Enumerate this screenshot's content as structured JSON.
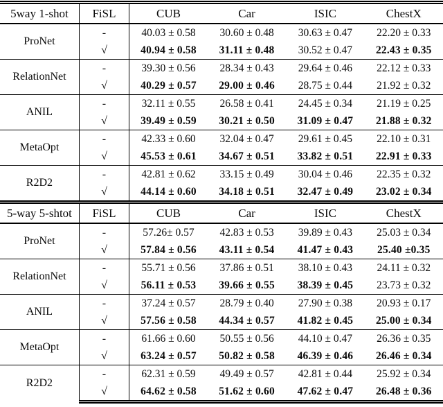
{
  "table": {
    "sections": [
      {
        "title": "5way 1-shot",
        "fisl_label": "FiSL",
        "columns": [
          "CUB",
          "Car",
          "ISIC",
          "ChestX"
        ],
        "groups": [
          {
            "method": "ProNet",
            "rows": [
              {
                "fisl": "-",
                "cells": [
                  {
                    "t": "40.03 ± 0.58",
                    "b": false
                  },
                  {
                    "t": "30.60 ± 0.48",
                    "b": false
                  },
                  {
                    "t": "30.63 ± 0.47",
                    "b": false
                  },
                  {
                    "t": "22.20 ± 0.33",
                    "b": false
                  }
                ]
              },
              {
                "fisl": "√",
                "cells": [
                  {
                    "t": "40.94 ± 0.58",
                    "b": true
                  },
                  {
                    "t": "31.11 ± 0.48",
                    "b": true
                  },
                  {
                    "t": "30.52 ± 0.47",
                    "b": false
                  },
                  {
                    "t": "22.43 ± 0.35",
                    "b": true
                  }
                ]
              }
            ]
          },
          {
            "method": "RelationNet",
            "rows": [
              {
                "fisl": "-",
                "cells": [
                  {
                    "t": "39.30 ± 0.56",
                    "b": false
                  },
                  {
                    "t": "28.34 ± 0.43",
                    "b": false
                  },
                  {
                    "t": "29.64 ± 0.46",
                    "b": false
                  },
                  {
                    "t": "22.12 ± 0.33",
                    "b": false
                  }
                ]
              },
              {
                "fisl": "√",
                "cells": [
                  {
                    "t": "40.29 ± 0.57",
                    "b": true
                  },
                  {
                    "t": "29.00 ± 0.46",
                    "b": true
                  },
                  {
                    "t": "28.75 ± 0.44",
                    "b": false
                  },
                  {
                    "t": "21.92 ± 0.32",
                    "b": false
                  }
                ]
              }
            ]
          },
          {
            "method": "ANIL",
            "rows": [
              {
                "fisl": "-",
                "cells": [
                  {
                    "t": "32.11 ± 0.55",
                    "b": false
                  },
                  {
                    "t": "26.58 ± 0.41",
                    "b": false
                  },
                  {
                    "t": "24.45 ± 0.34",
                    "b": false
                  },
                  {
                    "t": "21.19 ± 0.25",
                    "b": false
                  }
                ]
              },
              {
                "fisl": "√",
                "cells": [
                  {
                    "t": "39.49 ± 0.59",
                    "b": true
                  },
                  {
                    "t": "30.21 ± 0.50",
                    "b": true
                  },
                  {
                    "t": "31.09 ± 0.47",
                    "b": true
                  },
                  {
                    "t": "21.88 ± 0.32",
                    "b": true
                  }
                ]
              }
            ]
          },
          {
            "method": "MetaOpt",
            "rows": [
              {
                "fisl": "-",
                "cells": [
                  {
                    "t": "42.33 ± 0.60",
                    "b": false
                  },
                  {
                    "t": "32.04 ± 0.47",
                    "b": false
                  },
                  {
                    "t": "29.61 ± 0.45",
                    "b": false
                  },
                  {
                    "t": "22.10 ± 0.31",
                    "b": false
                  }
                ]
              },
              {
                "fisl": "√",
                "cells": [
                  {
                    "t": "45.53 ± 0.61",
                    "b": true
                  },
                  {
                    "t": "34.67 ± 0.51",
                    "b": true
                  },
                  {
                    "t": "33.82 ± 0.51",
                    "b": true
                  },
                  {
                    "t": "22.91 ± 0.33",
                    "b": true
                  }
                ]
              }
            ]
          },
          {
            "method": "R2D2",
            "rows": [
              {
                "fisl": "-",
                "cells": [
                  {
                    "t": "42.81 ± 0.62",
                    "b": false
                  },
                  {
                    "t": "33.15 ± 0.49",
                    "b": false
                  },
                  {
                    "t": "30.04 ± 0.46",
                    "b": false
                  },
                  {
                    "t": "22.35 ± 0.32",
                    "b": false
                  }
                ]
              },
              {
                "fisl": "√",
                "cells": [
                  {
                    "t": "44.14 ± 0.60",
                    "b": true
                  },
                  {
                    "t": "34.18 ± 0.51",
                    "b": true
                  },
                  {
                    "t": "32.47 ± 0.49",
                    "b": true
                  },
                  {
                    "t": "23.02 ± 0.34",
                    "b": true
                  }
                ]
              }
            ]
          }
        ]
      },
      {
        "title": "5-way 5-shtot",
        "fisl_label": "FiSL",
        "columns": [
          "CUB",
          "Car",
          "ISIC",
          "ChestX"
        ],
        "groups": [
          {
            "method": "ProNet",
            "rows": [
              {
                "fisl": "-",
                "cells": [
                  {
                    "t": "57.26± 0.57",
                    "b": false
                  },
                  {
                    "t": "42.83 ± 0.53",
                    "b": false
                  },
                  {
                    "t": "39.89 ± 0.43",
                    "b": false
                  },
                  {
                    "t": "25.03 ± 0.34",
                    "b": false
                  }
                ]
              },
              {
                "fisl": "√",
                "cells": [
                  {
                    "t": "57.84 ± 0.56",
                    "b": true
                  },
                  {
                    "t": "43.11 ± 0.54",
                    "b": true
                  },
                  {
                    "t": "41.47 ± 0.43",
                    "b": true
                  },
                  {
                    "t": "25.40 ±0.35",
                    "b": true
                  }
                ]
              }
            ]
          },
          {
            "method": "RelationNet",
            "rows": [
              {
                "fisl": "-",
                "cells": [
                  {
                    "t": "55.71 ± 0.56",
                    "b": false
                  },
                  {
                    "t": "37.86 ± 0.51",
                    "b": false
                  },
                  {
                    "t": "38.10 ± 0.43",
                    "b": false
                  },
                  {
                    "t": "24.11 ± 0.32",
                    "b": false
                  }
                ]
              },
              {
                "fisl": "√",
                "cells": [
                  {
                    "t": "56.11 ± 0.53",
                    "b": true
                  },
                  {
                    "t": "39.66 ± 0.55",
                    "b": true
                  },
                  {
                    "t": "38.39 ± 0.45",
                    "b": true
                  },
                  {
                    "t": "23.73 ± 0.32",
                    "b": false
                  }
                ]
              }
            ]
          },
          {
            "method": "ANIL",
            "rows": [
              {
                "fisl": "-",
                "cells": [
                  {
                    "t": "37.24 ± 0.57",
                    "b": false
                  },
                  {
                    "t": "28.79 ± 0.40",
                    "b": false
                  },
                  {
                    "t": "27.90 ± 0.38",
                    "b": false
                  },
                  {
                    "t": "20.93 ± 0.17",
                    "b": false
                  }
                ]
              },
              {
                "fisl": "√",
                "cells": [
                  {
                    "t": "57.56 ± 0.58",
                    "b": true
                  },
                  {
                    "t": "44.34 ± 0.57",
                    "b": true
                  },
                  {
                    "t": "41.82 ± 0.45",
                    "b": true
                  },
                  {
                    "t": "25.00 ± 0.34",
                    "b": true
                  }
                ]
              }
            ]
          },
          {
            "method": "MetaOpt",
            "rows": [
              {
                "fisl": "-",
                "cells": [
                  {
                    "t": "61.66 ± 0.60",
                    "b": false
                  },
                  {
                    "t": "50.55 ± 0.56",
                    "b": false
                  },
                  {
                    "t": "44.10 ± 0.47",
                    "b": false
                  },
                  {
                    "t": "26.36 ± 0.35",
                    "b": false
                  }
                ]
              },
              {
                "fisl": "√",
                "cells": [
                  {
                    "t": "63.24 ± 0.57",
                    "b": true
                  },
                  {
                    "t": "50.82 ± 0.58",
                    "b": true
                  },
                  {
                    "t": "46.39 ± 0.46",
                    "b": true
                  },
                  {
                    "t": "26.46 ± 0.34",
                    "b": true
                  }
                ]
              }
            ]
          },
          {
            "method": "R2D2",
            "rows": [
              {
                "fisl": "-",
                "cells": [
                  {
                    "t": "62.31 ± 0.59",
                    "b": false
                  },
                  {
                    "t": "49.49 ± 0.57",
                    "b": false
                  },
                  {
                    "t": "42.81 ± 0.44",
                    "b": false
                  },
                  {
                    "t": "25.92 ± 0.34",
                    "b": false
                  }
                ]
              },
              {
                "fisl": "√",
                "cells": [
                  {
                    "t": "64.62 ± 0.58",
                    "b": true
                  },
                  {
                    "t": "51.62 ± 0.60",
                    "b": true
                  },
                  {
                    "t": "47.62 ± 0.47",
                    "b": true
                  },
                  {
                    "t": "26.48 ± 0.36",
                    "b": true
                  }
                ]
              }
            ]
          }
        ]
      }
    ]
  }
}
